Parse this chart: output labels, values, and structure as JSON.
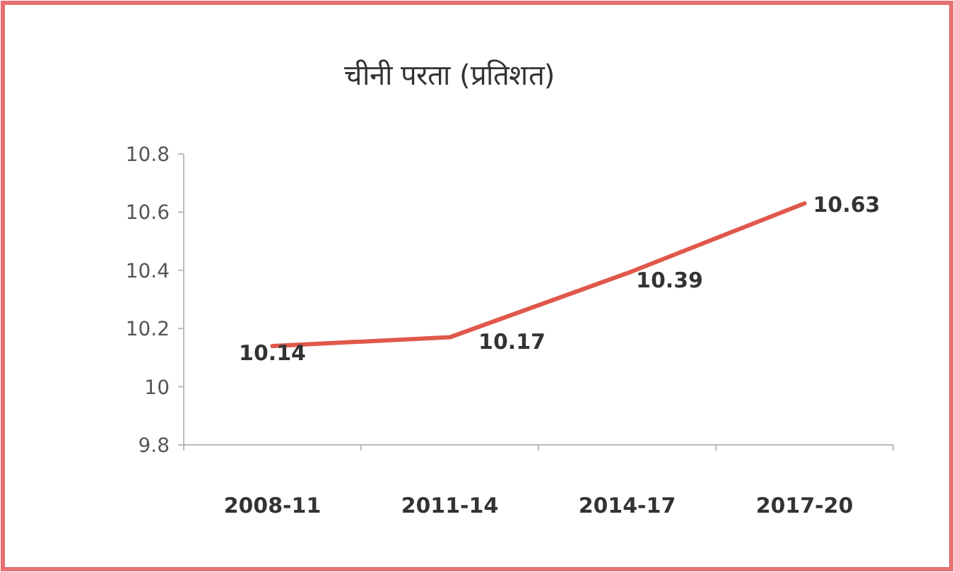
{
  "chart_data": {
    "type": "line",
    "title": "चीनी परता (प्रतिशत)",
    "categories": [
      "2008-11",
      "2011-14",
      "2014-17",
      "2017-20"
    ],
    "series": [
      {
        "color": "#e0584a",
        "values": [
          10.14,
          10.17,
          10.39,
          10.63
        ]
      }
    ],
    "ylim": [
      9.8,
      10.8
    ],
    "yticks": [
      9.8,
      10,
      10.2,
      10.4,
      10.6,
      10.8
    ],
    "data_labels": true,
    "grid": false,
    "marker": "none",
    "line_style": "solid"
  }
}
